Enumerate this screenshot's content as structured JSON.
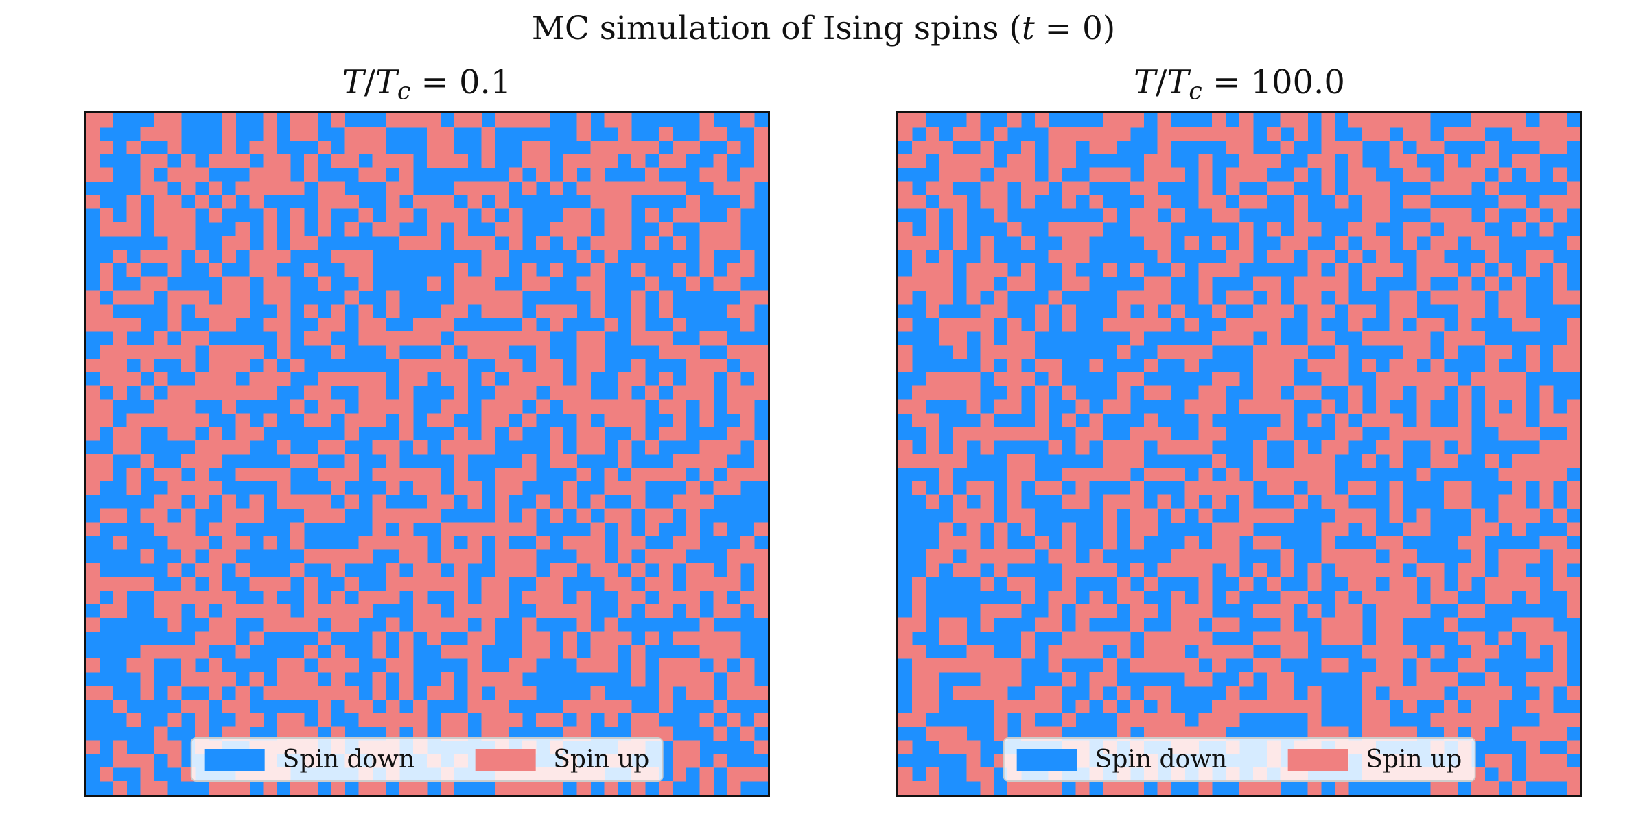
{
  "figure": {
    "suptitle_prefix": "MC simulation of Ising spins (",
    "suptitle_var": "t",
    "suptitle_suffix": " = 0)"
  },
  "colors": {
    "spin_down": "#1e90ff",
    "spin_up": "#f08080"
  },
  "chart_data": [
    {
      "type": "heatmap",
      "title": "T/Tc = 0.1",
      "title_value": "0.1",
      "grid_size": 50,
      "values": [
        -1,
        1
      ],
      "legend": [
        "Spin down",
        "Spin up"
      ],
      "legend_placement": "lower center",
      "initial_state": "random",
      "axes_visible": false
    },
    {
      "type": "heatmap",
      "title": "T/Tc = 100.0",
      "title_value": "100.0",
      "grid_size": 50,
      "values": [
        -1,
        1
      ],
      "legend": [
        "Spin down",
        "Spin up"
      ],
      "legend_placement": "lower center",
      "initial_state": "random",
      "axes_visible": false
    }
  ]
}
